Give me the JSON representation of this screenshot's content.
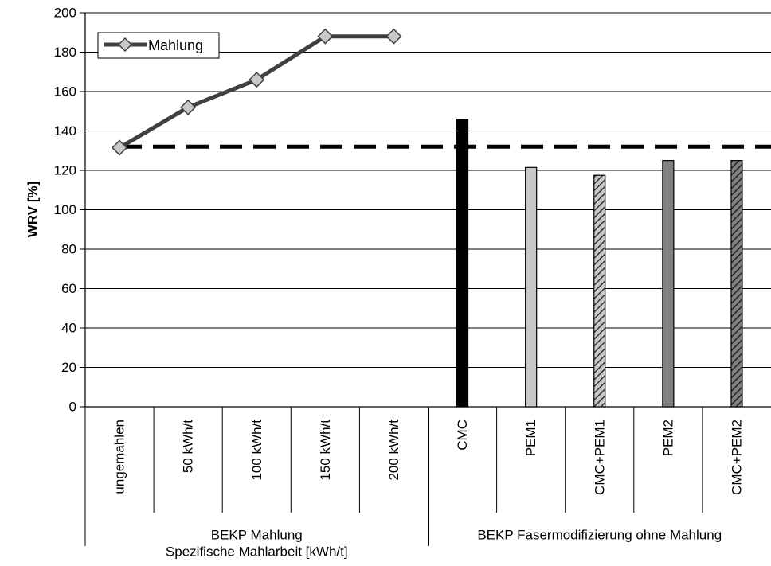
{
  "chart_data": {
    "type": "bar",
    "ylabel": "WRV [%]",
    "ylim": [
      0,
      200
    ],
    "yticks": [
      0,
      20,
      40,
      60,
      80,
      100,
      120,
      140,
      160,
      180,
      200
    ],
    "grid": true,
    "legend_position": "top-left",
    "categories": [
      "ungemahlen",
      "50 kWh/t",
      "100 kWh/t",
      "150 kWh/t",
      "200 kWh/t",
      "CMC",
      "PEM1",
      "CMC+PEM1",
      "PEM2",
      "CMC+PEM2"
    ],
    "groups": [
      {
        "label_lines": [
          "BEKP Mahlung",
          "Spezifische Mahlarbeit [kWh/t]"
        ],
        "categories": [
          "ungemahlen",
          "50 kWh/t",
          "100 kWh/t",
          "150 kWh/t",
          "200 kWh/t"
        ]
      },
      {
        "label_lines": [
          "BEKP Fasermodifizierung ohne Mahlung"
        ],
        "categories": [
          "CMC",
          "PEM1",
          "CMC+PEM1",
          "PEM2",
          "CMC+PEM2"
        ]
      }
    ],
    "line_series": {
      "name": "Mahlung",
      "color": "#404040",
      "marker": "diamond",
      "categories": [
        "ungemahlen",
        "50 kWh/t",
        "100 kWh/t",
        "150 kWh/t",
        "200 kWh/t"
      ],
      "values": [
        131.5,
        152,
        166,
        188,
        188
      ]
    },
    "bar_series": {
      "categories": [
        "CMC",
        "PEM1",
        "CMC+PEM1",
        "PEM2",
        "CMC+PEM2"
      ],
      "values": [
        146,
        121.5,
        117.5,
        125,
        125
      ],
      "styles": [
        "solid-black",
        "solid-lightgray",
        "hatched-lightgray",
        "solid-darkgray",
        "hatched-darkgray"
      ]
    },
    "reference_line": {
      "value": 132,
      "style": "dashed",
      "color": "#000000"
    }
  }
}
